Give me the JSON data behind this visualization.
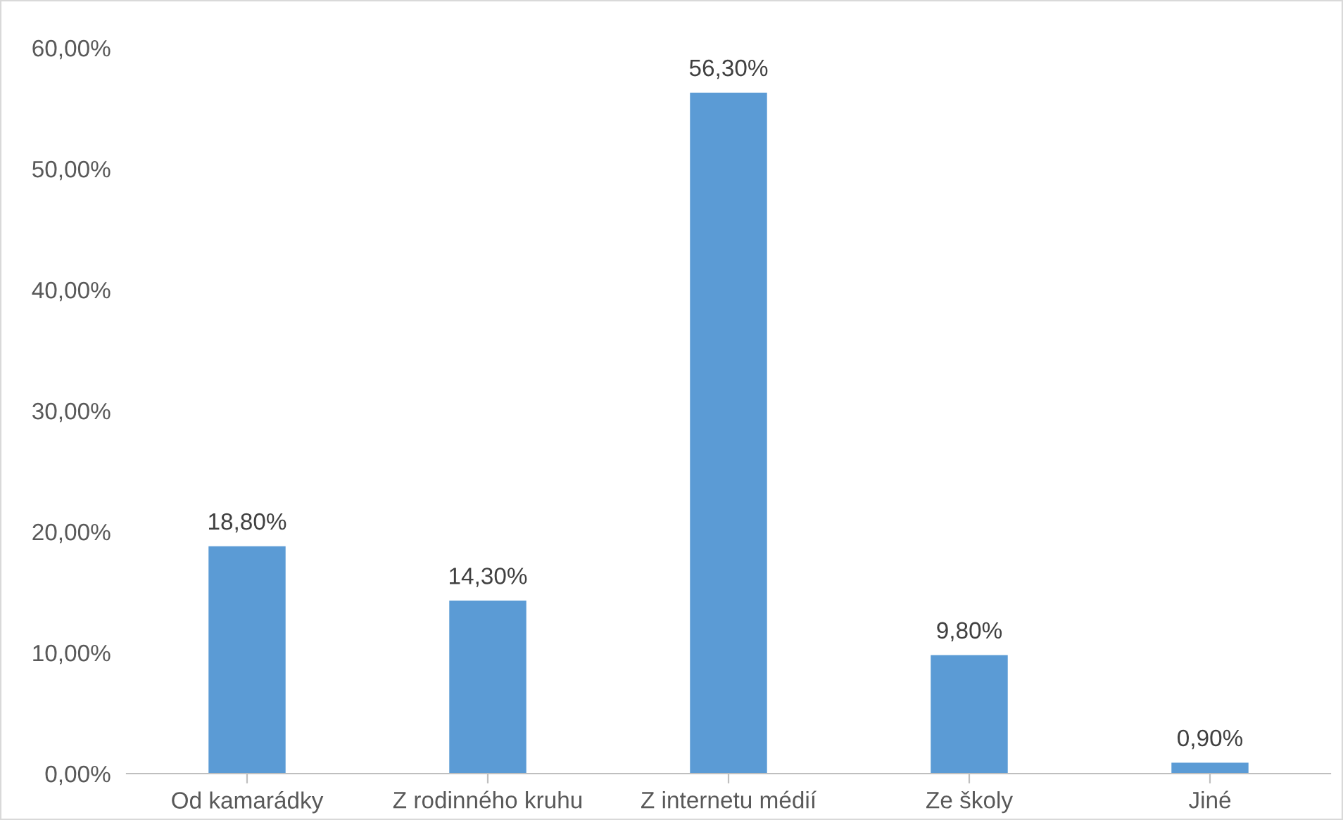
{
  "chart_data": {
    "type": "bar",
    "categories": [
      "Od kamarádky",
      "Z rodinného kruhu",
      "Z internetu médií",
      "Ze školy",
      "Jiné"
    ],
    "values": [
      18.8,
      14.3,
      56.3,
      9.8,
      0.9
    ],
    "value_labels": [
      "18,80%",
      "14,30%",
      "56,30%",
      "9,80%",
      "0,90%"
    ],
    "color": "#5b9bd5",
    "ylim": [
      0,
      60
    ],
    "yticks": [
      {
        "value": 0,
        "label": "0,00%"
      },
      {
        "value": 10,
        "label": "10,00%"
      },
      {
        "value": 20,
        "label": "20,00%"
      },
      {
        "value": 30,
        "label": "30,00%"
      },
      {
        "value": 40,
        "label": "40,00%"
      },
      {
        "value": 50,
        "label": "50,00%"
      },
      {
        "value": 60,
        "label": "60,00%"
      }
    ],
    "grid": false,
    "legend": false
  }
}
